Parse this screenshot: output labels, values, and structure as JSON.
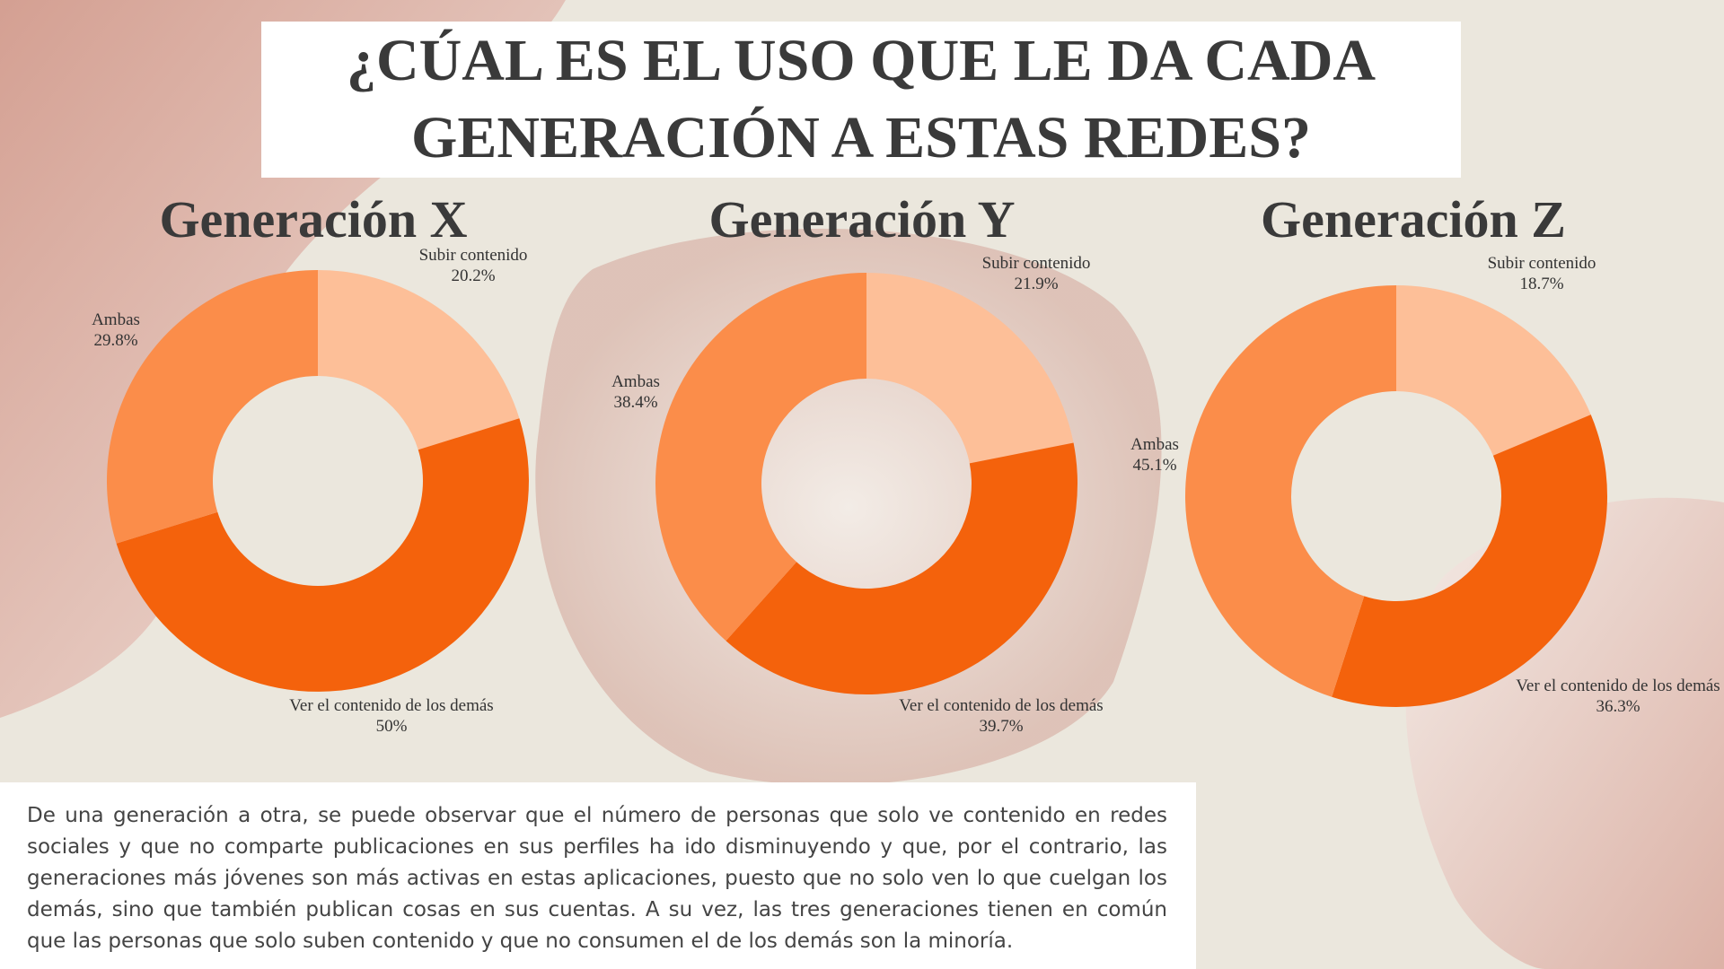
{
  "header": {
    "title": "¿CÚAL ES EL USO QUE LE DA CADA GENERACIÓN A ESTAS REDES?"
  },
  "description": "De una generación a otra, se puede observar que el número de personas que solo ve contenido en redes sociales y que no comparte publicaciones en sus perfiles ha ido disminuyendo y que, por el contrario, las generaciones más jóvenes son más activas en estas aplicaciones, puesto que no solo ven lo que cuelgan los demás, sino que también publican cosas en sus cuentas. A su vez, las tres generaciones tienen en común que las personas que solo suben contenido y que no consumen el de los demás son la minoría.",
  "chart_data": [
    {
      "type": "donut",
      "title": "Generación X",
      "categories": [
        "Subir contenido",
        "Ver el contenido de los demás",
        "Ambas"
      ],
      "values": [
        20.2,
        50,
        29.8
      ],
      "value_labels": [
        "20.2%",
        "50%",
        "29.8%"
      ],
      "colors": [
        "#fdbf98",
        "#f4620c",
        "#fb8d4a"
      ]
    },
    {
      "type": "donut",
      "title": "Generación Y",
      "categories": [
        "Subir contenido",
        "Ver el contenido de los demás",
        "Ambas"
      ],
      "values": [
        21.9,
        39.7,
        38.4
      ],
      "value_labels": [
        "21.9%",
        "39.7%",
        "38.4%"
      ],
      "colors": [
        "#fdbf98",
        "#f4620c",
        "#fb8d4a"
      ]
    },
    {
      "type": "donut",
      "title": "Generación Z",
      "categories": [
        "Subir contenido",
        "Ver el contenido de los demás",
        "Ambas"
      ],
      "values": [
        18.7,
        36.3,
        45.1
      ],
      "value_labels": [
        "18.7%",
        "36.3%",
        "45.1%"
      ],
      "colors": [
        "#fdbf98",
        "#f4620c",
        "#fb8d4a"
      ]
    }
  ]
}
